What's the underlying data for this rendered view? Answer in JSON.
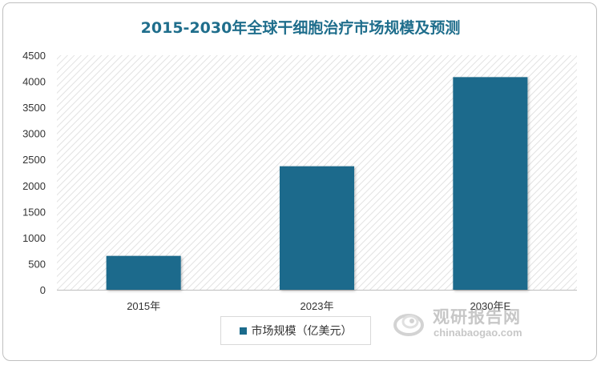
{
  "chart_data": {
    "type": "bar",
    "title": "2015-2030年全球干细胞治疗市场规模及预测",
    "categories": [
      "2015年",
      "2023年",
      "2030年E"
    ],
    "series": [
      {
        "name": "市场规模（亿美元）",
        "values": [
          650,
          2370,
          4080
        ]
      }
    ],
    "ylim": [
      0,
      4500
    ],
    "yticks": [
      0,
      500,
      1000,
      1500,
      2000,
      2500,
      3000,
      3500,
      4000,
      4500
    ],
    "xlabel": "",
    "ylabel": "",
    "grid": false,
    "plot_background": "diagonal-hatch",
    "legend_position": "bottom",
    "bar_color": "#1b6b8c",
    "title_color": "#1f6e8c"
  },
  "watermark": {
    "name_cn": "观研报告网",
    "name_en": "chinabaogao.com",
    "icon": "chinabaogao-logo-icon"
  }
}
